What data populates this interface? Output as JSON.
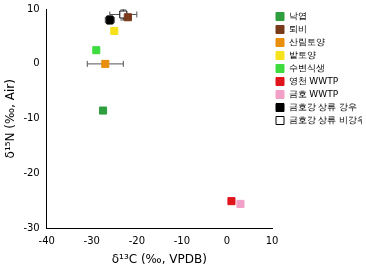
{
  "chart_data": {
    "type": "scatter",
    "x_label": "δ¹³C (‰, VPDB)",
    "y_label": "δ¹⁵N (‰, Air)",
    "xlim": [
      -40,
      10
    ],
    "xticks": [
      -40,
      -30,
      -20,
      -10,
      0,
      10
    ],
    "ylim": [
      -30,
      10
    ],
    "yticks": [
      -30,
      -20,
      -10,
      0,
      10
    ],
    "grid": false,
    "legend": "right",
    "marker": "square",
    "series": [
      {
        "name": "낙엽",
        "color": "#2e9e3e",
        "x": [
          -27.5
        ],
        "values": [
          -8.5
        ],
        "x_err": [
          0.3
        ],
        "y_err": [
          0.3
        ]
      },
      {
        "name": "퇴비",
        "color": "#7a3b1c",
        "x": [
          -22
        ],
        "values": [
          8.5
        ],
        "x_err": [
          0.8
        ],
        "y_err": [
          0.4
        ]
      },
      {
        "name": "산림토양",
        "color": "#e8900c",
        "x": [
          -27
        ],
        "values": [
          0
        ],
        "x_err": [
          4
        ],
        "y_err": [
          0.5
        ]
      },
      {
        "name": "밭토양",
        "color": "#f5e21b",
        "x": [
          -25
        ],
        "values": [
          6
        ],
        "x_err": [
          0.5
        ],
        "y_err": [
          0.5
        ]
      },
      {
        "name": "수변식생",
        "color": "#3fdc3f",
        "x": [
          -29
        ],
        "values": [
          2.5
        ],
        "x_err": [
          0.3
        ],
        "y_err": [
          0.3
        ]
      },
      {
        "name": "영천 WWTP",
        "color": "#e0151b",
        "x": [
          1
        ],
        "values": [
          -25
        ],
        "x_err": [
          0.3
        ],
        "y_err": [
          0.3
        ]
      },
      {
        "name": "금호 WWTP",
        "color": "#f2a0c8",
        "x": [
          3
        ],
        "values": [
          -25.5
        ],
        "x_err": [
          0.3
        ],
        "y_err": [
          0.3
        ]
      },
      {
        "name": "금호강 상류 강우",
        "color": "#000000",
        "x": [
          -26
        ],
        "values": [
          8
        ],
        "x_err": [
          1
        ],
        "y_err": [
          0.8
        ]
      },
      {
        "name": "금호강 상류 비강우",
        "color": "#ffffff",
        "x": [
          -23
        ],
        "values": [
          9
        ],
        "x_err": [
          3
        ],
        "y_err": [
          1
        ]
      }
    ]
  }
}
